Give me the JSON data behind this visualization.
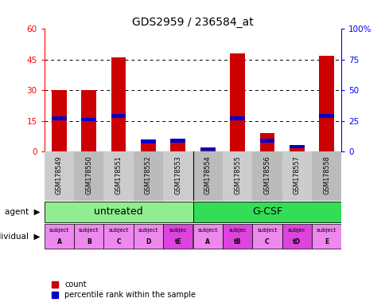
{
  "title": "GDS2959 / 236584_at",
  "samples": [
    "GSM178549",
    "GSM178550",
    "GSM178551",
    "GSM178552",
    "GSM178553",
    "GSM178554",
    "GSM178555",
    "GSM178556",
    "GSM178557",
    "GSM178558"
  ],
  "counts": [
    30,
    30,
    46,
    5,
    6,
    2,
    48,
    9,
    3,
    47
  ],
  "percentile_ranks": [
    27,
    26,
    29,
    8,
    9,
    2,
    27,
    9,
    4,
    29
  ],
  "ylim_left": [
    0,
    60
  ],
  "ylim_right": [
    0,
    100
  ],
  "yticks_left": [
    0,
    15,
    30,
    45,
    60
  ],
  "yticks_right": [
    0,
    25,
    50,
    75,
    100
  ],
  "yticklabels_left": [
    "0",
    "15",
    "30",
    "45",
    "60"
  ],
  "yticklabels_right": [
    "0",
    "25",
    "50",
    "75",
    "100%"
  ],
  "agent_groups": [
    {
      "label": "untreated",
      "start": 0,
      "end": 5,
      "color": "#90EE90"
    },
    {
      "label": "G-CSF",
      "start": 5,
      "end": 10,
      "color": "#33DD55"
    }
  ],
  "individuals": [
    {
      "label": "subject\nA",
      "idx": 0,
      "color": "#EE88EE"
    },
    {
      "label": "subject\nB",
      "idx": 1,
      "color": "#EE88EE"
    },
    {
      "label": "subject\nC",
      "idx": 2,
      "color": "#EE88EE"
    },
    {
      "label": "subject\nD",
      "idx": 3,
      "color": "#EE88EE"
    },
    {
      "label": "subjec\ntE",
      "idx": 4,
      "color": "#DD44DD"
    },
    {
      "label": "subject\nA",
      "idx": 5,
      "color": "#EE88EE"
    },
    {
      "label": "subjec\ntB",
      "idx": 6,
      "color": "#DD44DD"
    },
    {
      "label": "subject\nC",
      "idx": 7,
      "color": "#EE88EE"
    },
    {
      "label": "subjec\ntD",
      "idx": 8,
      "color": "#DD44DD"
    },
    {
      "label": "subject\nE",
      "idx": 9,
      "color": "#EE88EE"
    }
  ],
  "bar_color": "#CC0000",
  "percentile_color": "#0000CC",
  "bar_width": 0.5,
  "background_color": "white",
  "xtick_bg": "#CCCCCC",
  "agent_label": "agent",
  "individual_label": "individual",
  "count_legend": "count",
  "percentile_legend": "percentile rank within the sample"
}
